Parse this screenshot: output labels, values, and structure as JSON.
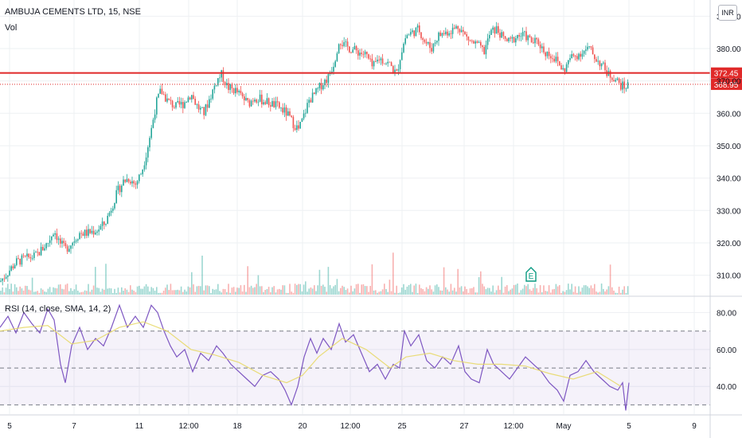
{
  "header": {
    "title": "AMBUJA CEMENTS LTD, 15, NSE",
    "volume_label": "Vol",
    "currency": "INR"
  },
  "rsi": {
    "label": "RSI (14, close, SMA, 14, 2)"
  },
  "earnings_marker": "E",
  "colors": {
    "up": "#26a69a",
    "down": "#ef5350",
    "resistance": "#e02929",
    "rsi_line": "#7e57c2",
    "rsi_sma": "#e8d96a",
    "grid": "#eef0f3"
  },
  "chart_data": [
    {
      "type": "line",
      "title": "AMBUJA CEMENTS LTD, 15, NSE",
      "series": [],
      "x_ticks": [
        "5",
        "7",
        "11",
        "12:00",
        "18",
        "20",
        "12:00",
        "25",
        "27",
        "12:00",
        "May",
        "5",
        "9"
      ],
      "y_ticks": [
        310,
        320,
        330,
        340,
        350,
        360,
        370,
        380,
        390
      ],
      "y_tick_labels": [
        "310.00",
        "320.00",
        "330.00",
        "340.00",
        "350.00",
        "360.00",
        "370.00",
        "380.00",
        "390.00"
      ],
      "ylim": [
        304,
        395
      ],
      "price_path": [
        {
          "x": 0,
          "y": 308
        },
        {
          "x": 10,
          "y": 311
        },
        {
          "x": 20,
          "y": 314
        },
        {
          "x": 30,
          "y": 315
        },
        {
          "x": 45,
          "y": 316
        },
        {
          "x": 60,
          "y": 320
        },
        {
          "x": 68,
          "y": 324
        },
        {
          "x": 75,
          "y": 320
        },
        {
          "x": 82,
          "y": 318
        },
        {
          "x": 90,
          "y": 320
        },
        {
          "x": 100,
          "y": 323
        },
        {
          "x": 110,
          "y": 323
        },
        {
          "x": 122,
          "y": 324
        },
        {
          "x": 132,
          "y": 326
        },
        {
          "x": 140,
          "y": 331
        },
        {
          "x": 148,
          "y": 336
        },
        {
          "x": 155,
          "y": 339
        },
        {
          "x": 162,
          "y": 340
        },
        {
          "x": 170,
          "y": 338
        },
        {
          "x": 178,
          "y": 342
        },
        {
          "x": 184,
          "y": 348
        },
        {
          "x": 190,
          "y": 355
        },
        {
          "x": 196,
          "y": 363
        },
        {
          "x": 202,
          "y": 367
        },
        {
          "x": 210,
          "y": 364
        },
        {
          "x": 220,
          "y": 362
        },
        {
          "x": 230,
          "y": 363
        },
        {
          "x": 240,
          "y": 366
        },
        {
          "x": 248,
          "y": 362
        },
        {
          "x": 256,
          "y": 360
        },
        {
          "x": 264,
          "y": 365
        },
        {
          "x": 272,
          "y": 370
        },
        {
          "x": 278,
          "y": 372
        },
        {
          "x": 286,
          "y": 368
        },
        {
          "x": 296,
          "y": 367
        },
        {
          "x": 304,
          "y": 365
        },
        {
          "x": 312,
          "y": 363
        },
        {
          "x": 320,
          "y": 365
        },
        {
          "x": 330,
          "y": 364
        },
        {
          "x": 340,
          "y": 363
        },
        {
          "x": 350,
          "y": 362
        },
        {
          "x": 360,
          "y": 360
        },
        {
          "x": 368,
          "y": 357
        },
        {
          "x": 375,
          "y": 355
        },
        {
          "x": 380,
          "y": 358
        },
        {
          "x": 388,
          "y": 364
        },
        {
          "x": 396,
          "y": 366
        },
        {
          "x": 404,
          "y": 369
        },
        {
          "x": 412,
          "y": 371
        },
        {
          "x": 420,
          "y": 376
        },
        {
          "x": 426,
          "y": 383
        },
        {
          "x": 432,
          "y": 381
        },
        {
          "x": 440,
          "y": 380
        },
        {
          "x": 450,
          "y": 379
        },
        {
          "x": 460,
          "y": 378
        },
        {
          "x": 468,
          "y": 374
        },
        {
          "x": 476,
          "y": 377
        },
        {
          "x": 484,
          "y": 376
        },
        {
          "x": 490,
          "y": 375
        },
        {
          "x": 498,
          "y": 372
        },
        {
          "x": 504,
          "y": 379
        },
        {
          "x": 510,
          "y": 384
        },
        {
          "x": 518,
          "y": 385
        },
        {
          "x": 526,
          "y": 386
        },
        {
          "x": 534,
          "y": 382
        },
        {
          "x": 542,
          "y": 380
        },
        {
          "x": 550,
          "y": 384
        },
        {
          "x": 560,
          "y": 385
        },
        {
          "x": 570,
          "y": 386
        },
        {
          "x": 576,
          "y": 387
        },
        {
          "x": 584,
          "y": 384
        },
        {
          "x": 592,
          "y": 382
        },
        {
          "x": 600,
          "y": 381
        },
        {
          "x": 608,
          "y": 379
        },
        {
          "x": 616,
          "y": 385
        },
        {
          "x": 624,
          "y": 386
        },
        {
          "x": 632,
          "y": 383
        },
        {
          "x": 640,
          "y": 382
        },
        {
          "x": 650,
          "y": 384
        },
        {
          "x": 660,
          "y": 384
        },
        {
          "x": 668,
          "y": 382
        },
        {
          "x": 676,
          "y": 382
        },
        {
          "x": 684,
          "y": 379
        },
        {
          "x": 692,
          "y": 378
        },
        {
          "x": 700,
          "y": 376
        },
        {
          "x": 708,
          "y": 373
        },
        {
          "x": 716,
          "y": 377
        },
        {
          "x": 724,
          "y": 378
        },
        {
          "x": 732,
          "y": 379
        },
        {
          "x": 740,
          "y": 380
        },
        {
          "x": 748,
          "y": 377
        },
        {
          "x": 756,
          "y": 375
        },
        {
          "x": 764,
          "y": 372
        },
        {
          "x": 772,
          "y": 371
        },
        {
          "x": 778,
          "y": 369
        },
        {
          "x": 784,
          "y": 368
        },
        {
          "x": 790,
          "y": 369
        }
      ],
      "horizontal_lines": [
        {
          "value": 372.45,
          "label": "372.45",
          "style": "solid"
        },
        {
          "value": 368.95,
          "label": "368.95",
          "style": "dotted"
        }
      ]
    },
    {
      "type": "line",
      "title": "RSI (14, close, SMA, 14, 2)",
      "y_ticks": [
        40,
        60,
        80
      ],
      "y_tick_labels": [
        "40.00",
        "60.00",
        "80.00"
      ],
      "ylim": [
        25,
        88
      ],
      "bands": [
        30,
        50,
        70
      ],
      "series": [
        {
          "values": [
            {
              "x": 0,
              "y": 72
            },
            {
              "x": 10,
              "y": 78
            },
            {
              "x": 20,
              "y": 69
            },
            {
              "x": 30,
              "y": 80
            },
            {
              "x": 40,
              "y": 74
            },
            {
              "x": 50,
              "y": 69
            },
            {
              "x": 60,
              "y": 82
            },
            {
              "x": 68,
              "y": 76
            },
            {
              "x": 76,
              "y": 52
            },
            {
              "x": 82,
              "y": 42
            },
            {
              "x": 90,
              "y": 62
            },
            {
              "x": 100,
              "y": 72
            },
            {
              "x": 110,
              "y": 60
            },
            {
              "x": 120,
              "y": 66
            },
            {
              "x": 130,
              "y": 62
            },
            {
              "x": 140,
              "y": 72
            },
            {
              "x": 150,
              "y": 84
            },
            {
              "x": 160,
              "y": 72
            },
            {
              "x": 170,
              "y": 78
            },
            {
              "x": 180,
              "y": 72
            },
            {
              "x": 190,
              "y": 84
            },
            {
              "x": 198,
              "y": 80
            },
            {
              "x": 206,
              "y": 70
            },
            {
              "x": 214,
              "y": 62
            },
            {
              "x": 222,
              "y": 56
            },
            {
              "x": 232,
              "y": 60
            },
            {
              "x": 242,
              "y": 48
            },
            {
              "x": 252,
              "y": 58
            },
            {
              "x": 262,
              "y": 54
            },
            {
              "x": 272,
              "y": 62
            },
            {
              "x": 280,
              "y": 58
            },
            {
              "x": 290,
              "y": 52
            },
            {
              "x": 300,
              "y": 48
            },
            {
              "x": 310,
              "y": 44
            },
            {
              "x": 320,
              "y": 40
            },
            {
              "x": 330,
              "y": 46
            },
            {
              "x": 340,
              "y": 48
            },
            {
              "x": 350,
              "y": 44
            },
            {
              "x": 358,
              "y": 38
            },
            {
              "x": 366,
              "y": 30
            },
            {
              "x": 374,
              "y": 40
            },
            {
              "x": 382,
              "y": 56
            },
            {
              "x": 390,
              "y": 66
            },
            {
              "x": 398,
              "y": 58
            },
            {
              "x": 406,
              "y": 66
            },
            {
              "x": 416,
              "y": 60
            },
            {
              "x": 426,
              "y": 74
            },
            {
              "x": 434,
              "y": 64
            },
            {
              "x": 444,
              "y": 68
            },
            {
              "x": 454,
              "y": 58
            },
            {
              "x": 464,
              "y": 48
            },
            {
              "x": 474,
              "y": 52
            },
            {
              "x": 484,
              "y": 44
            },
            {
              "x": 494,
              "y": 52
            },
            {
              "x": 502,
              "y": 50
            },
            {
              "x": 508,
              "y": 70
            },
            {
              "x": 516,
              "y": 62
            },
            {
              "x": 526,
              "y": 68
            },
            {
              "x": 536,
              "y": 54
            },
            {
              "x": 546,
              "y": 50
            },
            {
              "x": 556,
              "y": 56
            },
            {
              "x": 566,
              "y": 52
            },
            {
              "x": 576,
              "y": 62
            },
            {
              "x": 584,
              "y": 48
            },
            {
              "x": 592,
              "y": 44
            },
            {
              "x": 602,
              "y": 42
            },
            {
              "x": 612,
              "y": 60
            },
            {
              "x": 620,
              "y": 52
            },
            {
              "x": 630,
              "y": 48
            },
            {
              "x": 640,
              "y": 44
            },
            {
              "x": 650,
              "y": 50
            },
            {
              "x": 660,
              "y": 56
            },
            {
              "x": 670,
              "y": 52
            },
            {
              "x": 680,
              "y": 48
            },
            {
              "x": 690,
              "y": 42
            },
            {
              "x": 700,
              "y": 38
            },
            {
              "x": 708,
              "y": 32
            },
            {
              "x": 716,
              "y": 46
            },
            {
              "x": 726,
              "y": 48
            },
            {
              "x": 736,
              "y": 54
            },
            {
              "x": 746,
              "y": 48
            },
            {
              "x": 756,
              "y": 44
            },
            {
              "x": 766,
              "y": 40
            },
            {
              "x": 776,
              "y": 38
            },
            {
              "x": 782,
              "y": 42
            },
            {
              "x": 786,
              "y": 27
            },
            {
              "x": 790,
              "y": 42
            }
          ]
        },
        {
          "values": [
            {
              "x": 0,
              "y": 70
            },
            {
              "x": 30,
              "y": 72
            },
            {
              "x": 60,
              "y": 73
            },
            {
              "x": 90,
              "y": 63
            },
            {
              "x": 120,
              "y": 65
            },
            {
              "x": 150,
              "y": 72
            },
            {
              "x": 180,
              "y": 75
            },
            {
              "x": 210,
              "y": 70
            },
            {
              "x": 240,
              "y": 60
            },
            {
              "x": 270,
              "y": 57
            },
            {
              "x": 300,
              "y": 53
            },
            {
              "x": 330,
              "y": 46
            },
            {
              "x": 360,
              "y": 42
            },
            {
              "x": 380,
              "y": 46
            },
            {
              "x": 400,
              "y": 56
            },
            {
              "x": 430,
              "y": 66
            },
            {
              "x": 460,
              "y": 60
            },
            {
              "x": 490,
              "y": 50
            },
            {
              "x": 510,
              "y": 56
            },
            {
              "x": 540,
              "y": 58
            },
            {
              "x": 570,
              "y": 54
            },
            {
              "x": 600,
              "y": 52
            },
            {
              "x": 630,
              "y": 52
            },
            {
              "x": 660,
              "y": 51
            },
            {
              "x": 690,
              "y": 47
            },
            {
              "x": 720,
              "y": 44
            },
            {
              "x": 750,
              "y": 48
            },
            {
              "x": 780,
              "y": 40
            }
          ]
        }
      ]
    }
  ]
}
